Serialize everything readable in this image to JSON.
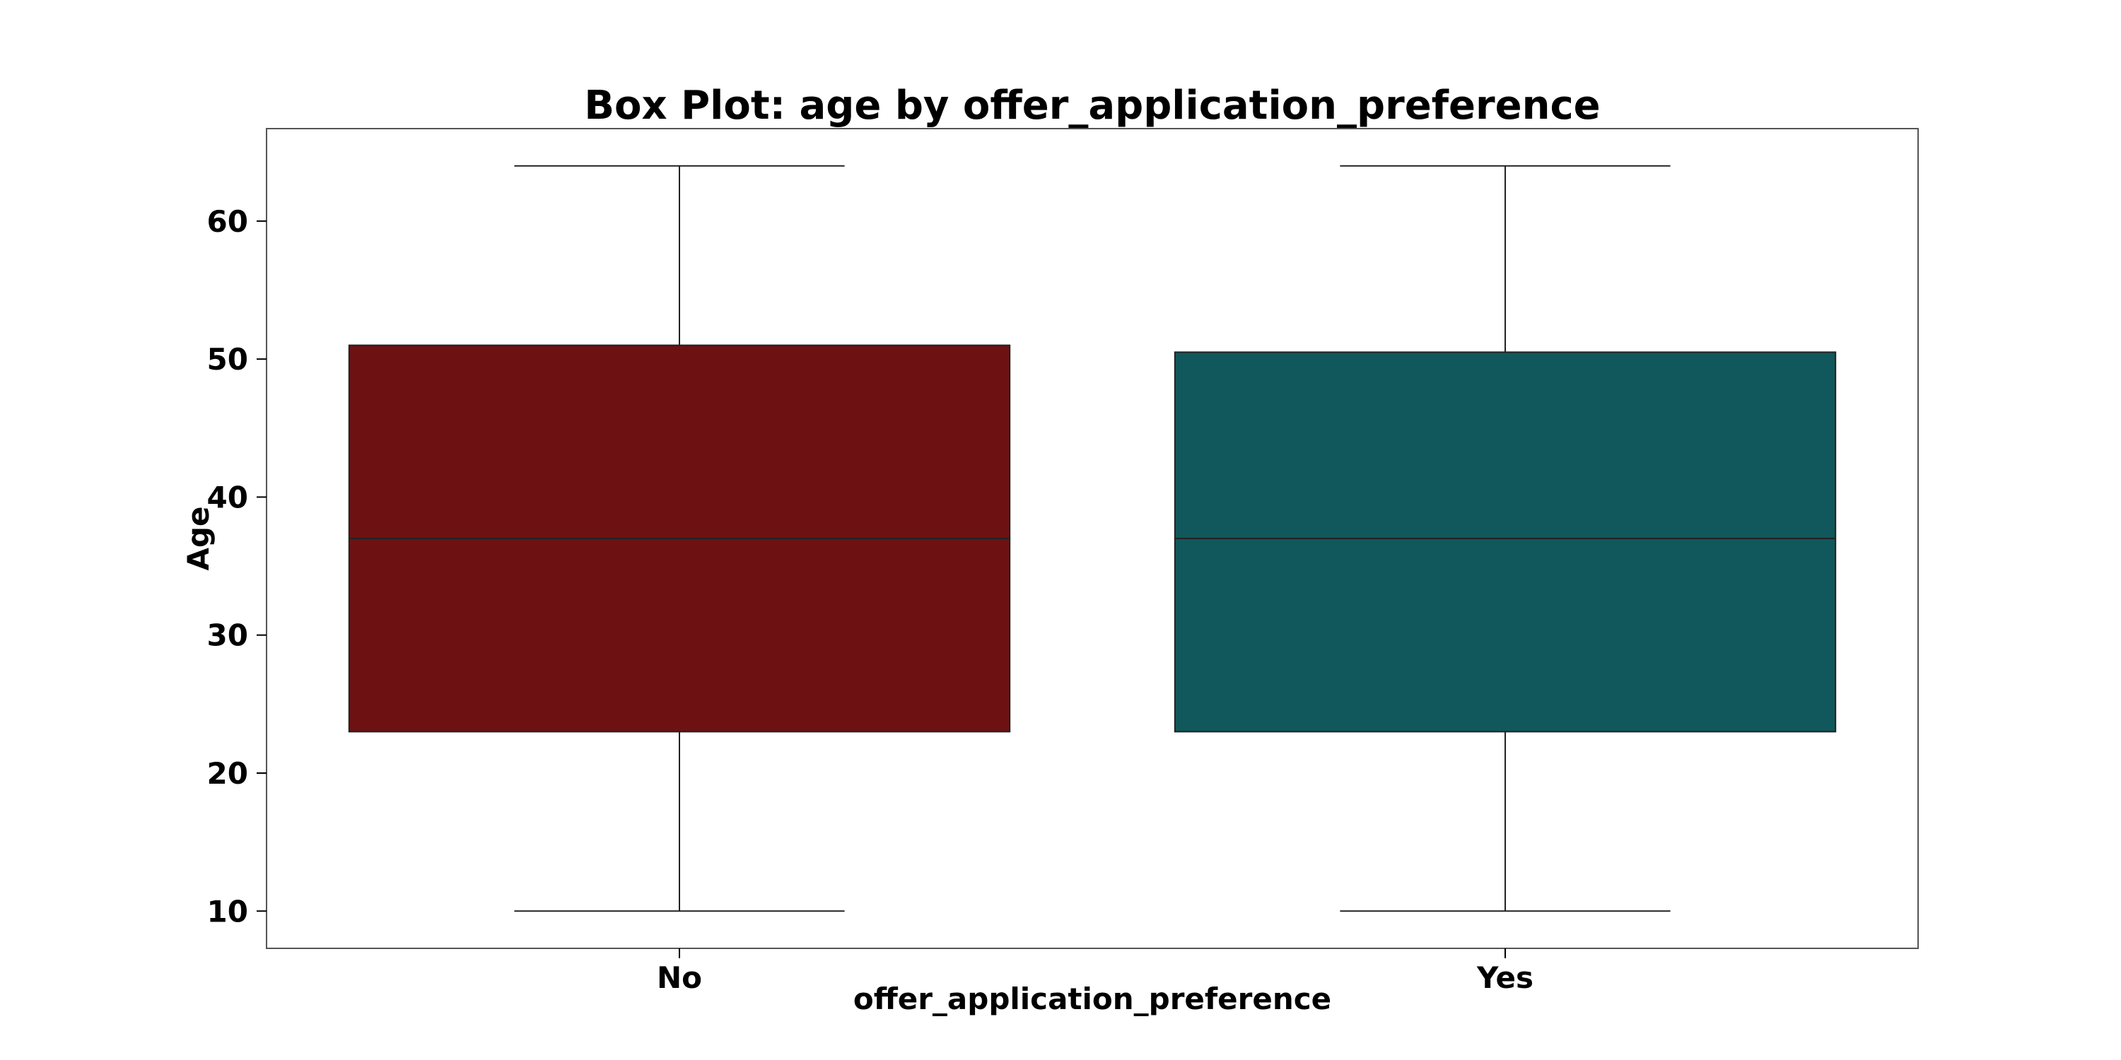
{
  "chart_data": {
    "type": "box",
    "title": "Box Plot: age by offer_application_preference",
    "xlabel": "offer_application_preference",
    "ylabel": "Age",
    "ylim": [
      7.3,
      66.7
    ],
    "yticks": [
      10,
      20,
      30,
      40,
      50,
      60
    ],
    "grid": false,
    "categories": [
      "No",
      "Yes"
    ],
    "colors": [
      "#6e1113",
      "#10585b"
    ],
    "boxes": [
      {
        "category": "No",
        "whisker_low": 10,
        "q1": 23,
        "median": 37,
        "q3": 51,
        "whisker_high": 64
      },
      {
        "category": "Yes",
        "whisker_low": 10,
        "q1": 23,
        "median": 37,
        "q3": 50.5,
        "whisker_high": 64
      }
    ]
  }
}
